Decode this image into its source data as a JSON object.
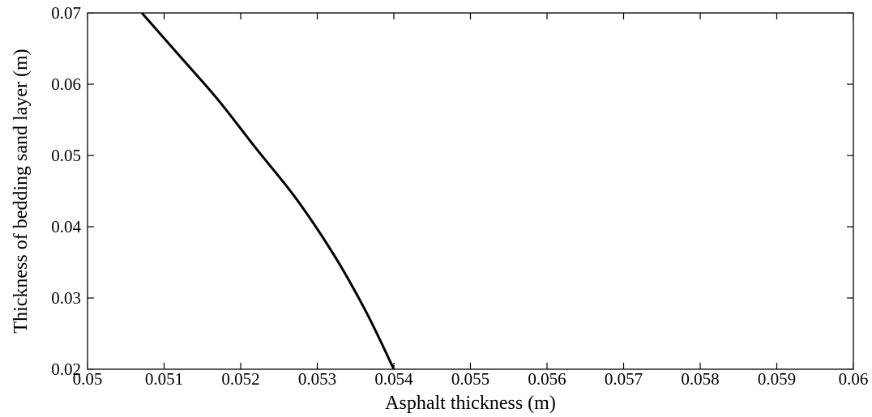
{
  "chart_data": {
    "type": "line",
    "title": "",
    "xlabel": "Asphalt thickness (m)",
    "ylabel": "Thickness of bedding sand layer (m)",
    "xlim": [
      0.05,
      0.06
    ],
    "ylim": [
      0.02,
      0.07
    ],
    "x_ticks": [
      0.05,
      0.051,
      0.052,
      0.053,
      0.054,
      0.055,
      0.056,
      0.057,
      0.058,
      0.059,
      0.06
    ],
    "x_tick_labels": [
      "0.05",
      "0.051",
      "0.052",
      "0.053",
      "0.054",
      "0.055",
      "0.056",
      "0.057",
      "0.058",
      "0.059",
      "0.06"
    ],
    "y_ticks": [
      0.02,
      0.03,
      0.04,
      0.05,
      0.06,
      0.07
    ],
    "y_tick_labels": [
      "0.02",
      "0.03",
      "0.04",
      "0.05",
      "0.06",
      "0.07"
    ],
    "grid": false,
    "legend": "none",
    "series": [
      {
        "color": "#000000",
        "x": [
          0.05071,
          0.0512,
          0.05169,
          0.0522,
          0.05272,
          0.05322,
          0.05364,
          0.054
        ],
        "y": [
          0.07,
          0.064,
          0.058,
          0.051,
          0.044,
          0.036,
          0.028,
          0.02
        ]
      }
    ]
  }
}
